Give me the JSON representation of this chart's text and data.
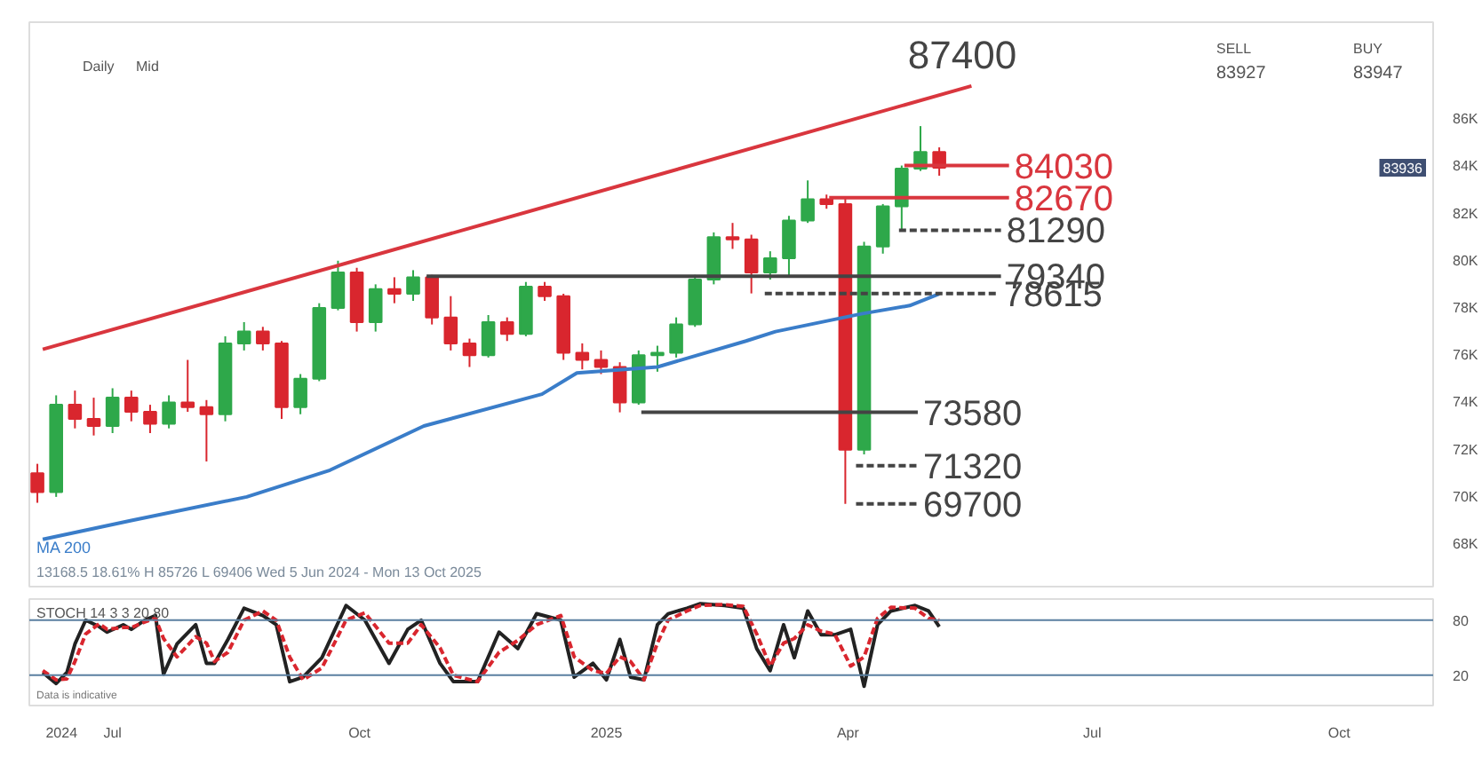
{
  "chart_data": [
    {
      "type": "candlestick",
      "x": [
        "2024-06-03",
        "2024-06-10",
        "2024-06-17",
        "2024-06-24",
        "2024-07-01",
        "2024-07-08",
        "2024-07-15",
        "2024-07-22",
        "2024-07-29",
        "2024-08-05",
        "2024-08-12",
        "2024-08-19",
        "2024-08-26",
        "2024-09-02",
        "2024-09-09",
        "2024-09-16",
        "2024-09-23",
        "2024-09-30",
        "2024-10-07",
        "2024-10-14",
        "2024-10-21",
        "2024-10-28",
        "2024-11-04",
        "2024-11-11",
        "2024-11-18",
        "2024-11-25",
        "2024-12-02",
        "2024-12-09",
        "2024-12-16",
        "2024-12-23",
        "2024-12-30",
        "2025-01-06",
        "2025-01-13",
        "2025-01-20",
        "2025-01-27",
        "2025-02-03",
        "2025-02-10",
        "2025-02-17",
        "2025-02-24",
        "2025-03-03",
        "2025-03-10",
        "2025-03-17",
        "2025-03-24",
        "2025-03-31",
        "2025-04-07",
        "2025-04-14",
        "2025-04-21",
        "2025-04-28",
        "2025-05-05"
      ],
      "ohlc": [
        [
          71000,
          71400,
          69750,
          70200
        ],
        [
          70200,
          74300,
          70000,
          73900
        ],
        [
          73900,
          74500,
          72900,
          73300
        ],
        [
          73300,
          74200,
          72600,
          73000
        ],
        [
          73000,
          74600,
          72700,
          74200
        ],
        [
          74200,
          74500,
          73200,
          73600
        ],
        [
          73600,
          73900,
          72700,
          73100
        ],
        [
          73100,
          74300,
          72900,
          74000
        ],
        [
          74000,
          75800,
          73600,
          73800
        ],
        [
          73800,
          74100,
          71500,
          73500
        ],
        [
          73500,
          76800,
          73200,
          76500
        ],
        [
          76500,
          77400,
          76200,
          77000
        ],
        [
          77000,
          77200,
          76200,
          76500
        ],
        [
          76500,
          76600,
          73300,
          73800
        ],
        [
          73800,
          75200,
          73500,
          75000
        ],
        [
          75000,
          78200,
          74900,
          78000
        ],
        [
          78000,
          80000,
          77900,
          79500
        ],
        [
          79500,
          79700,
          77000,
          77400
        ],
        [
          77400,
          79000,
          77000,
          78800
        ],
        [
          78800,
          79300,
          78200,
          78600
        ],
        [
          78600,
          79600,
          78300,
          79300
        ],
        [
          79300,
          79400,
          77300,
          77600
        ],
        [
          77600,
          78500,
          76200,
          76500
        ],
        [
          76500,
          76700,
          75500,
          76000
        ],
        [
          76000,
          77700,
          75900,
          77400
        ],
        [
          77400,
          77600,
          76600,
          76900
        ],
        [
          76900,
          79100,
          76800,
          78900
        ],
        [
          78900,
          79100,
          78300,
          78500
        ],
        [
          78500,
          78600,
          75800,
          76100
        ],
        [
          76100,
          76500,
          75400,
          75800
        ],
        [
          75800,
          76200,
          75200,
          75500
        ],
        [
          75500,
          75700,
          73580,
          74000
        ],
        [
          74000,
          76200,
          73900,
          76000
        ],
        [
          76000,
          76400,
          75300,
          76100
        ],
        [
          76100,
          77600,
          75900,
          77300
        ],
        [
          77300,
          79400,
          77200,
          79200
        ],
        [
          79200,
          81200,
          79000,
          81000
        ],
        [
          81000,
          81600,
          80500,
          80900
        ],
        [
          80900,
          81100,
          78615,
          79500
        ],
        [
          79500,
          80400,
          79200,
          80100
        ],
        [
          80100,
          81900,
          79300,
          81700
        ],
        [
          81700,
          83400,
          81600,
          82600
        ],
        [
          82600,
          82800,
          82200,
          82400
        ],
        [
          82400,
          82670,
          69700,
          72000
        ],
        [
          72000,
          80800,
          71800,
          80600
        ],
        [
          80600,
          82400,
          80300,
          82300
        ],
        [
          82300,
          84030,
          81290,
          83900
        ],
        [
          83900,
          85700,
          83800,
          84600
        ],
        [
          84600,
          84800,
          83600,
          83936
        ]
      ],
      "colors": [
        "#d9262e",
        "#2ea84a",
        "#d9262e",
        "#d9262e",
        "#2ea84a",
        "#d9262e",
        "#d9262e",
        "#2ea84a",
        "#d9262e",
        "#d9262e",
        "#2ea84a",
        "#2ea84a",
        "#d9262e",
        "#d9262e",
        "#2ea84a",
        "#2ea84a",
        "#2ea84a",
        "#d9262e",
        "#2ea84a",
        "#d9262e",
        "#2ea84a",
        "#d9262e",
        "#d9262e",
        "#d9262e",
        "#2ea84a",
        "#d9262e",
        "#2ea84a",
        "#d9262e",
        "#d9262e",
        "#d9262e",
        "#d9262e",
        "#d9262e",
        "#2ea84a",
        "#2ea84a",
        "#2ea84a",
        "#2ea84a",
        "#2ea84a",
        "#d9262e",
        "#d9262e",
        "#2ea84a",
        "#2ea84a",
        "#2ea84a",
        "#d9262e",
        "#d9262e",
        "#2ea84a",
        "#2ea84a",
        "#2ea84a",
        "#2ea84a",
        "#d9262e"
      ],
      "series": [
        {
          "name": "MA 200",
          "type": "line",
          "color": "#3a7dc9",
          "x": [
            "2024-06-05",
            "2024-07-08",
            "2024-08-20",
            "2024-09-20",
            "2024-10-25",
            "2024-12-08",
            "2024-12-21",
            "2025-01-20",
            "2025-02-22",
            "2025-03-05",
            "2025-04-06",
            "2025-04-24",
            "2025-05-05"
          ],
          "values": [
            68200,
            69000,
            70000,
            71130,
            73000,
            74350,
            75250,
            75500,
            76600,
            77000,
            77750,
            78100,
            78600
          ]
        },
        {
          "type": "line",
          "color": "#d9363e",
          "x": [
            "2024-06-05",
            "2025-05-17"
          ],
          "values": [
            76250,
            87400
          ]
        },
        {
          "type": "line",
          "color": "#d9363e",
          "x": [
            "2025-04-22",
            "2025-05-31"
          ],
          "values": [
            84030,
            84030
          ]
        },
        {
          "type": "line",
          "color": "#d9363e",
          "x": [
            "2025-03-25",
            "2025-05-31"
          ],
          "values": [
            82670,
            82670
          ]
        },
        {
          "type": "line",
          "color": "#444444",
          "line_style": "dashed",
          "x": [
            "2025-04-20",
            "2025-05-28"
          ],
          "values": [
            81290,
            81290
          ]
        },
        {
          "type": "line",
          "color": "#444444",
          "x": [
            "2024-10-26",
            "2025-05-28"
          ],
          "values": [
            79340,
            79340
          ]
        },
        {
          "type": "line",
          "color": "#444444",
          "line_style": "dashed",
          "x": [
            "2025-03-01",
            "2025-05-27"
          ],
          "values": [
            78615,
            78615
          ]
        },
        {
          "type": "line",
          "color": "#444444",
          "x": [
            "2025-01-14",
            "2025-04-27"
          ],
          "values": [
            73580,
            73580
          ]
        },
        {
          "type": "line",
          "color": "#444444",
          "line_style": "dashed",
          "x": [
            "2025-04-04",
            "2025-04-27"
          ],
          "values": [
            71320,
            71320
          ]
        },
        {
          "type": "line",
          "color": "#444444",
          "line_style": "dashed",
          "x": [
            "2025-04-04",
            "2025-04-27"
          ],
          "values": [
            69700,
            69700
          ]
        }
      ],
      "xlim": [
        "2024-05-31",
        "2025-11-05"
      ],
      "ylim": [
        66200,
        90100
      ],
      "yticks": [
        {
          "value": 68000,
          "label": "68K"
        },
        {
          "value": 70000,
          "label": "70K"
        },
        {
          "value": 72000,
          "label": "72K"
        },
        {
          "value": 74000,
          "label": "74K"
        },
        {
          "value": 76000,
          "label": "76K"
        },
        {
          "value": 78000,
          "label": "78K"
        },
        {
          "value": 80000,
          "label": "80K"
        },
        {
          "value": 82000,
          "label": "82K"
        },
        {
          "value": 84000,
          "label": "84K"
        },
        {
          "value": 86000,
          "label": "86K"
        }
      ],
      "tick_labels": "y",
      "legend": "bottom left",
      "annotations": [
        "87400",
        {
          "text": "84030",
          "x": "2025-05-31",
          "y": 84030
        },
        {
          "text": "82670",
          "x": "2025-05-31",
          "y": 82670
        },
        {
          "text": "81290",
          "x": "2025-05-28",
          "y": 81290
        },
        {
          "text": "79340",
          "x": "2025-05-28",
          "y": 79340
        },
        {
          "text": "78615",
          "x": "2025-05-27",
          "y": 78615
        },
        {
          "text": "73580",
          "x": "2025-04-27",
          "y": 73580
        },
        {
          "text": "71320",
          "x": "2025-04-27",
          "y": 71320
        },
        {
          "text": "69700",
          "x": "2025-04-27",
          "y": 69700
        },
        {
          "text": "83936",
          "y": 83936
        },
        "Daily",
        "Mid",
        "SELL",
        "83927",
        "BUY",
        "83947",
        "13168.5  18.61%  H 85726  L 69406  Wed 5 Jun 2024 - Mon 13 Oct 2025"
      ]
    },
    {
      "type": "line",
      "title": "STOCH 14 3 3 20 80",
      "x": [
        "2024-06-05",
        "2024-06-10",
        "2024-06-14",
        "2024-06-17",
        "2024-06-21",
        "2024-06-26",
        "2024-06-29",
        "2024-07-05",
        "2024-07-08",
        "2024-07-13",
        "2024-07-17",
        "2024-07-20",
        "2024-07-25",
        "2024-08-01",
        "2024-08-05",
        "2024-08-08",
        "2024-08-13",
        "2024-08-19",
        "2024-08-26",
        "2024-08-31",
        "2024-09-05",
        "2024-09-10",
        "2024-09-17",
        "2024-09-26",
        "2024-10-03",
        "2024-10-12",
        "2024-10-19",
        "2024-10-24",
        "2024-10-31",
        "2024-11-05",
        "2024-11-14",
        "2024-11-22",
        "2024-11-29",
        "2024-12-06",
        "2024-12-15",
        "2024-12-20",
        "2024-12-27",
        "2025-01-01",
        "2025-01-06",
        "2025-01-10",
        "2025-01-15",
        "2025-01-20",
        "2025-01-24",
        "2025-01-31",
        "2025-02-05",
        "2025-02-14",
        "2025-02-21",
        "2025-02-26",
        "2025-03-03",
        "2025-03-08",
        "2025-03-12",
        "2025-03-17",
        "2025-03-22",
        "2025-03-27",
        "2025-04-02",
        "2025-04-07",
        "2025-04-12",
        "2025-04-17",
        "2025-04-26",
        "2025-05-01",
        "2025-05-05"
      ],
      "series": [
        {
          "color": "#222222",
          "values": [
            23,
            11,
            23,
            54,
            80,
            73,
            67,
            75,
            70,
            80,
            85,
            21,
            54,
            75,
            33,
            33,
            59,
            93,
            85,
            75,
            13,
            18,
            39,
            96,
            80,
            33,
            70,
            80,
            33,
            13,
            13,
            67,
            49,
            87,
            80,
            18,
            33,
            15,
            59,
            18,
            15,
            75,
            87,
            93,
            98,
            96,
            93,
            49,
            25,
            75,
            39,
            90,
            64,
            64,
            70,
            8,
            75,
            90,
            96,
            90,
            73
          ]
        },
        {
          "color": "#d9262e",
          "line_style": "dashed",
          "values": [
            25,
            15,
            16,
            35,
            65,
            76,
            70,
            72,
            72,
            78,
            82,
            60,
            40,
            62,
            55,
            35,
            45,
            80,
            90,
            80,
            40,
            15,
            28,
            80,
            88,
            55,
            55,
            75,
            50,
            20,
            13,
            45,
            58,
            75,
            85,
            40,
            25,
            22,
            40,
            35,
            15,
            55,
            80,
            90,
            96,
            97,
            95,
            65,
            30,
            55,
            60,
            75,
            68,
            65,
            30,
            40,
            82,
            94,
            93,
            82,
            80
          ]
        }
      ],
      "xlim": [
        "2024-05-31",
        "2025-11-05"
      ],
      "ylim": [
        -13,
        103
      ],
      "yticks": [
        20,
        80
      ],
      "xticks": [
        {
          "value": "2024-06-12",
          "label": "2024"
        },
        {
          "value": "2024-07-01",
          "label": "Jul"
        },
        {
          "value": "2024-10-01",
          "label": "Oct"
        },
        {
          "value": "2025-01-01",
          "label": "2025"
        },
        {
          "value": "2025-04-01",
          "label": "Apr"
        },
        {
          "value": "2025-07-01",
          "label": "Jul"
        },
        {
          "value": "2025-10-01",
          "label": "Oct"
        }
      ],
      "ref_lines": [
        {
          "axis": "y",
          "value": 80,
          "color": "#5a7fa0"
        },
        {
          "axis": "y",
          "value": 20,
          "color": "#5a7fa0"
        }
      ],
      "annotations": [
        "Data is indicative"
      ]
    }
  ]
}
